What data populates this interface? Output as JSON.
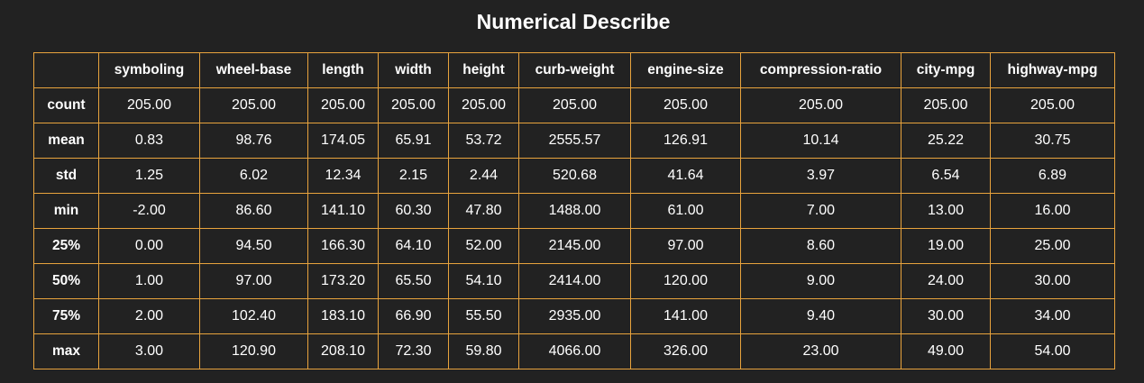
{
  "title": "Numerical Describe",
  "table": {
    "corner": "",
    "columns": [
      "symboling",
      "wheel-base",
      "length",
      "width",
      "height",
      "curb-weight",
      "engine-size",
      "compression-ratio",
      "city-mpg",
      "highway-mpg"
    ],
    "rows": [
      {
        "label": "count",
        "values": [
          "205.00",
          "205.00",
          "205.00",
          "205.00",
          "205.00",
          "205.00",
          "205.00",
          "205.00",
          "205.00",
          "205.00"
        ]
      },
      {
        "label": "mean",
        "values": [
          "0.83",
          "98.76",
          "174.05",
          "65.91",
          "53.72",
          "2555.57",
          "126.91",
          "10.14",
          "25.22",
          "30.75"
        ]
      },
      {
        "label": "std",
        "values": [
          "1.25",
          "6.02",
          "12.34",
          "2.15",
          "2.44",
          "520.68",
          "41.64",
          "3.97",
          "6.54",
          "6.89"
        ]
      },
      {
        "label": "min",
        "values": [
          "-2.00",
          "86.60",
          "141.10",
          "60.30",
          "47.80",
          "1488.00",
          "61.00",
          "7.00",
          "13.00",
          "16.00"
        ]
      },
      {
        "label": "25%",
        "values": [
          "0.00",
          "94.50",
          "166.30",
          "64.10",
          "52.00",
          "2145.00",
          "97.00",
          "8.60",
          "19.00",
          "25.00"
        ]
      },
      {
        "label": "50%",
        "values": [
          "1.00",
          "97.00",
          "173.20",
          "65.50",
          "54.10",
          "2414.00",
          "120.00",
          "9.00",
          "24.00",
          "30.00"
        ]
      },
      {
        "label": "75%",
        "values": [
          "2.00",
          "102.40",
          "183.10",
          "66.90",
          "55.50",
          "2935.00",
          "141.00",
          "9.40",
          "30.00",
          "34.00"
        ]
      },
      {
        "label": "max",
        "values": [
          "3.00",
          "120.90",
          "208.10",
          "72.30",
          "59.80",
          "4066.00",
          "326.00",
          "23.00",
          "49.00",
          "54.00"
        ]
      }
    ]
  },
  "colors": {
    "background": "#222222",
    "border": "#e8a33d",
    "text": "#ffffff"
  }
}
